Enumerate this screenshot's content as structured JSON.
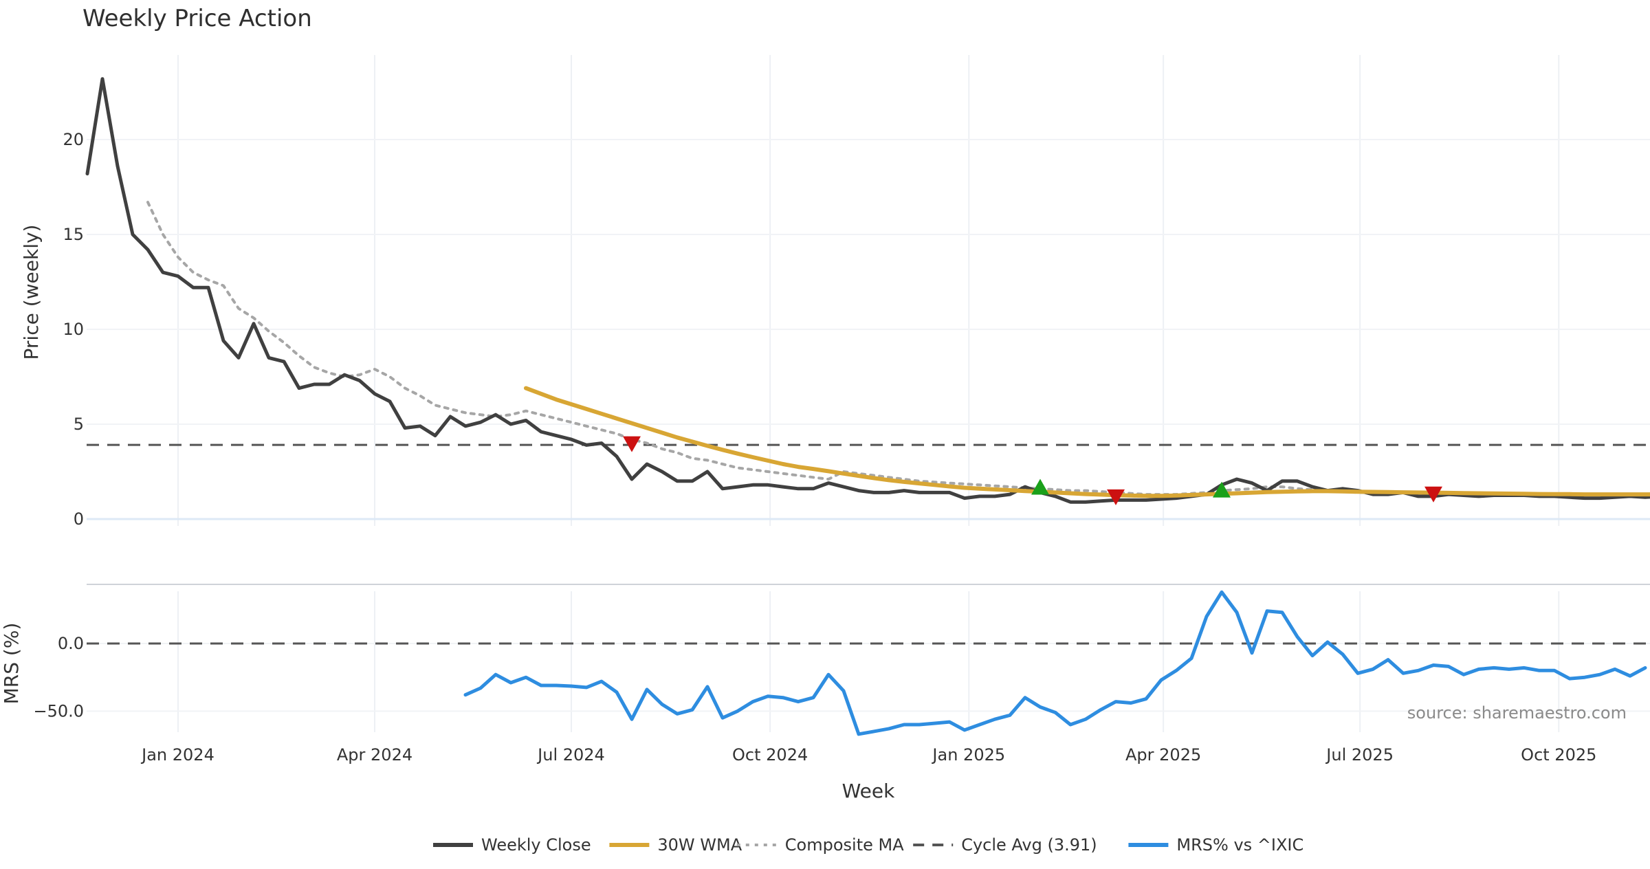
{
  "chart_data": {
    "title": "Weekly Price Action",
    "type": "line",
    "price_panel": {
      "ylabel": "Price (weekly)",
      "ylim": [
        0,
        24
      ],
      "yticks": [
        0,
        5,
        10,
        15,
        20
      ],
      "ytick_labels": [
        "0",
        "5",
        "10",
        "15",
        "20"
      ],
      "x_start_date": "2023-11-20",
      "cycle_avg": 3.91,
      "series": [
        {
          "name": "Weekly Close",
          "color": "#404040",
          "start_week": 0,
          "values": [
            18.2,
            23.2,
            18.6,
            15.0,
            14.2,
            13.0,
            12.8,
            12.2,
            12.2,
            9.4,
            8.5,
            10.3,
            8.5,
            8.3,
            6.9,
            7.1,
            7.1,
            7.6,
            7.3,
            6.6,
            6.2,
            4.8,
            4.9,
            4.4,
            5.4,
            4.9,
            5.1,
            5.5,
            5.0,
            5.2,
            4.6,
            4.4,
            4.2,
            3.9,
            4.0,
            3.3,
            2.1,
            2.9,
            2.5,
            2.0,
            2.0,
            2.5,
            1.6,
            1.7,
            1.8,
            1.8,
            1.7,
            1.6,
            1.6,
            1.9,
            1.7,
            1.5,
            1.4,
            1.4,
            1.5,
            1.4,
            1.4,
            1.4,
            1.1,
            1.2,
            1.2,
            1.3,
            1.7,
            1.4,
            1.2,
            0.9,
            0.9,
            0.95,
            1.0,
            1.0,
            1.0,
            1.05,
            1.1,
            1.2,
            1.3,
            1.8,
            2.1,
            1.9,
            1.5,
            2.0,
            2.0,
            1.7,
            1.5,
            1.6,
            1.5,
            1.3,
            1.3,
            1.4,
            1.2,
            1.2,
            1.3,
            1.25,
            1.2,
            1.25,
            1.25,
            1.25,
            1.2,
            1.2,
            1.15,
            1.1,
            1.1,
            1.15,
            1.2,
            1.15,
            1.2
          ]
        },
        {
          "name": "30W WMA",
          "color": "#d8a634",
          "start_week": 29,
          "values": [
            6.9,
            6.6,
            6.3,
            6.05,
            5.8,
            5.55,
            5.3,
            5.05,
            4.8,
            4.55,
            4.3,
            4.08,
            3.86,
            3.65,
            3.45,
            3.26,
            3.08,
            2.9,
            2.75,
            2.64,
            2.52,
            2.4,
            2.28,
            2.16,
            2.05,
            1.96,
            1.88,
            1.8,
            1.72,
            1.65,
            1.6,
            1.56,
            1.52,
            1.48,
            1.44,
            1.4,
            1.36,
            1.32,
            1.29,
            1.26,
            1.24,
            1.22,
            1.22,
            1.24,
            1.27,
            1.3,
            1.33,
            1.36,
            1.39,
            1.42,
            1.44,
            1.46,
            1.47,
            1.47,
            1.46,
            1.44,
            1.43,
            1.42,
            1.41,
            1.4,
            1.39,
            1.38,
            1.37,
            1.36,
            1.35,
            1.34,
            1.33,
            1.32,
            1.31,
            1.31,
            1.3,
            1.3,
            1.3,
            1.3,
            1.3,
            1.3
          ]
        },
        {
          "name": "Composite MA",
          "color": "#a6a6a6",
          "start_week": 4,
          "values": [
            16.7,
            15.0,
            13.8,
            13.0,
            12.6,
            12.3,
            11.1,
            10.6,
            9.9,
            9.3,
            8.6,
            8.0,
            7.7,
            7.5,
            7.6,
            7.9,
            7.5,
            6.9,
            6.5,
            6.0,
            5.8,
            5.6,
            5.5,
            5.4,
            5.5,
            5.7,
            5.5,
            5.3,
            5.1,
            4.9,
            4.7,
            4.5,
            4.2,
            4.0,
            3.7,
            3.5,
            3.2,
            3.1,
            2.9,
            2.7,
            2.6,
            2.5,
            2.4,
            2.3,
            2.2,
            2.1,
            2.5,
            2.4,
            2.3,
            2.2,
            2.1,
            2.0,
            1.95,
            1.9,
            1.85,
            1.8,
            1.75,
            1.7,
            1.65,
            1.6,
            1.55,
            1.5,
            1.5,
            1.45,
            1.4,
            1.35,
            1.3,
            1.3,
            1.3,
            1.35,
            1.4,
            1.5,
            1.55,
            1.6,
            1.7,
            1.7,
            1.6,
            1.55,
            1.5,
            1.45,
            1.4,
            1.4,
            1.4,
            1.35,
            1.35,
            1.3,
            1.3,
            1.3,
            1.3,
            1.3,
            1.3,
            1.3,
            1.3,
            1.3,
            1.3,
            1.3,
            1.3,
            1.3,
            1.3,
            1.3
          ]
        }
      ],
      "signals": [
        {
          "type": "sell",
          "week": 36,
          "value": 4.0,
          "color": "#cc1111"
        },
        {
          "type": "buy",
          "week": 63,
          "value": 1.65,
          "color": "#1aa01a"
        },
        {
          "type": "sell",
          "week": 68,
          "value": 1.2,
          "color": "#cc1111"
        },
        {
          "type": "buy",
          "week": 75,
          "value": 1.5,
          "color": "#1aa01a"
        },
        {
          "type": "sell",
          "week": 89,
          "value": 1.35,
          "color": "#cc1111"
        }
      ]
    },
    "mrs_panel": {
      "ylabel": "MRS (%)",
      "ylim": [
        -72,
        40
      ],
      "yticks": [
        0,
        -50
      ],
      "ytick_labels": [
        "0.0",
        "−50.0"
      ],
      "zero_line": 0,
      "series": {
        "name": "MRS% vs ^IXIC",
        "color": "#2e8de0",
        "start_week": 25,
        "values": [
          -38,
          -33,
          -23,
          -29,
          -25,
          -31,
          -31,
          -31.5,
          -32.5,
          -28,
          -36,
          -56,
          -34,
          -45,
          -52,
          -49,
          -32,
          -55,
          -50,
          -43,
          -39,
          -40,
          -43,
          -40,
          -23,
          -35,
          -67,
          -65,
          -63,
          -60,
          -60,
          -59,
          -58,
          -64,
          -60,
          -56,
          -53,
          -40,
          -47,
          -51,
          -60,
          -56,
          -49,
          -43,
          -44,
          -41,
          -27,
          -20,
          -11,
          20,
          38,
          23,
          -7,
          24,
          23,
          5,
          -9,
          1,
          -8,
          -22,
          -19,
          -12,
          -22,
          -20,
          -16,
          -17,
          -23,
          -19,
          -18,
          -19,
          -18,
          -20,
          -20,
          -26,
          -25,
          -23,
          -19,
          -24,
          -18
        ]
      }
    },
    "x_axis": {
      "xlabel": "Week",
      "ticks": [
        {
          "label": "Jan 2024",
          "date": "2024-01-01"
        },
        {
          "label": "Apr 2024",
          "date": "2024-04-01"
        },
        {
          "label": "Jul 2024",
          "date": "2024-07-01"
        },
        {
          "label": "Oct 2024",
          "date": "2024-10-01"
        },
        {
          "label": "Jan 2025",
          "date": "2025-01-01"
        },
        {
          "label": "Apr 2025",
          "date": "2025-04-01"
        },
        {
          "label": "Jul 2025",
          "date": "2025-07-01"
        },
        {
          "label": "Oct 2025",
          "date": "2025-10-01"
        }
      ]
    },
    "legend": {
      "position": "bottom-center",
      "items": [
        {
          "label": "Weekly Close",
          "color": "#404040",
          "style": "solid"
        },
        {
          "label": "30W WMA",
          "color": "#d8a634",
          "style": "solid"
        },
        {
          "label": "Composite MA",
          "color": "#a6a6a6",
          "style": "dotted"
        },
        {
          "label": "Cycle Avg (3.91)",
          "color": "#555555",
          "style": "dashed"
        },
        {
          "label": "MRS% vs ^IXIC",
          "color": "#2e8de0",
          "style": "solid"
        }
      ]
    },
    "annotation": "source: sharemaestro.com"
  }
}
